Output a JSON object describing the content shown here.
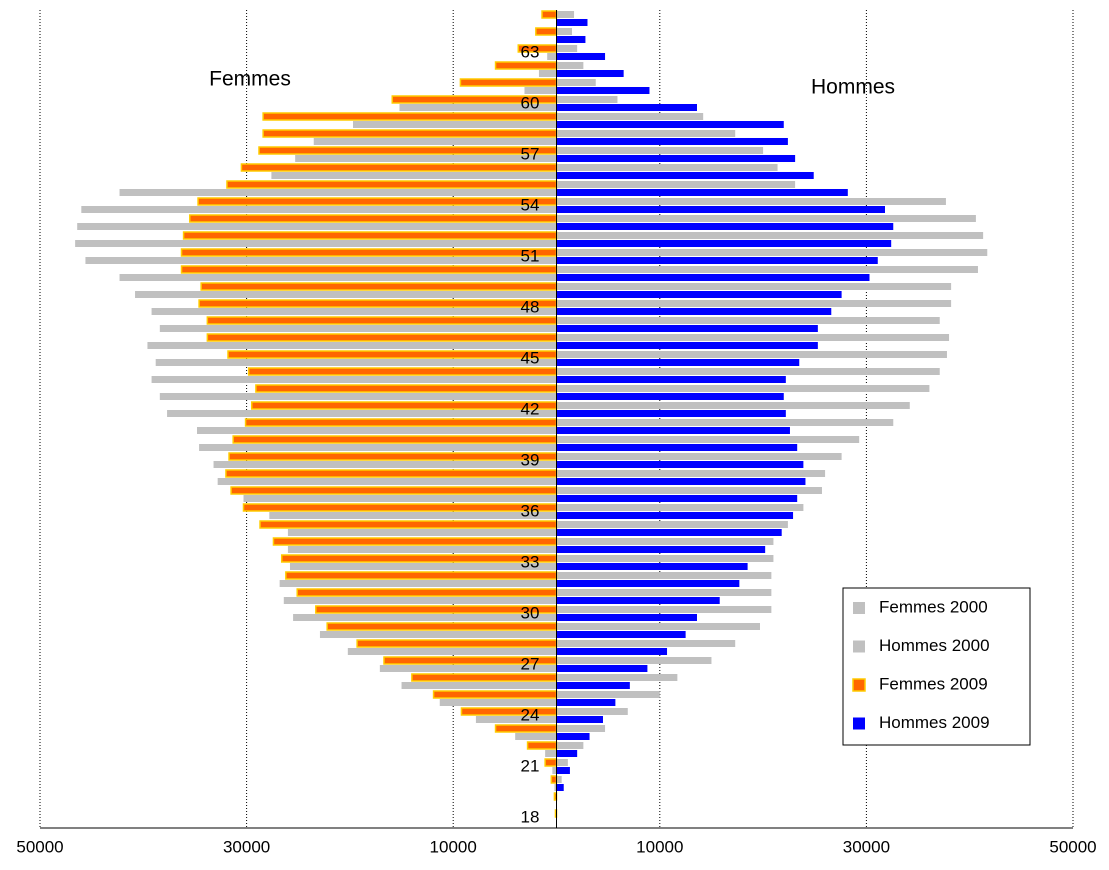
{
  "chart_data": {
    "type": "pyramid",
    "annotations": [
      "Femmes",
      "Hommes"
    ],
    "categories": [
      "18",
      null,
      null,
      "21",
      null,
      null,
      "24",
      null,
      null,
      "27",
      null,
      null,
      "30",
      null,
      null,
      "33",
      null,
      null,
      "36",
      null,
      null,
      "39",
      null,
      null,
      "42",
      null,
      null,
      "45",
      null,
      null,
      "48",
      null,
      null,
      "51",
      null,
      null,
      "54",
      null,
      null,
      "57",
      null,
      null,
      "60",
      null,
      null,
      "63",
      null,
      null
    ],
    "series": [
      {
        "name": "Femmes 2000",
        "color": "#c0c0c0",
        "values": [
          0,
          0,
          200,
          400,
          1100,
          4000,
          7800,
          11300,
          15000,
          17100,
          20200,
          22900,
          25500,
          26400,
          26800,
          25800,
          26000,
          26000,
          27800,
          30300,
          32800,
          33200,
          34600,
          34800,
          37700,
          38400,
          39200,
          38800,
          39600,
          38400,
          39200,
          40800,
          42300,
          45600,
          46600,
          46400,
          46000,
          42300,
          27600,
          25300,
          23500,
          19700,
          15200,
          3100,
          1700,
          900,
          0,
          0
        ]
      },
      {
        "name": "Hommes 2000",
        "color": "#c0c0c0",
        "values": [
          0,
          0,
          500,
          1100,
          2600,
          4700,
          6900,
          10000,
          11700,
          15000,
          17300,
          19700,
          20800,
          20800,
          20800,
          21000,
          21000,
          22400,
          23900,
          25700,
          26000,
          27600,
          29300,
          32600,
          34200,
          36100,
          37100,
          37800,
          38000,
          37100,
          38200,
          38200,
          40800,
          41700,
          41300,
          40600,
          37700,
          23100,
          21400,
          20000,
          17300,
          14200,
          5900,
          3800,
          2600,
          2000,
          1500,
          1700
        ]
      },
      {
        "name": "Femmes 2009",
        "color": "#ff6600",
        "values": [
          100,
          200,
          500,
          1100,
          2800,
          5900,
          9200,
          11900,
          14000,
          16700,
          19300,
          22200,
          23300,
          25100,
          26200,
          26600,
          27400,
          28700,
          30300,
          31500,
          32000,
          31700,
          31300,
          30100,
          29500,
          29100,
          29800,
          31800,
          33800,
          33800,
          34600,
          34400,
          36300,
          36300,
          36100,
          35500,
          34700,
          31900,
          30500,
          28800,
          28400,
          28400,
          15900,
          9300,
          5900,
          3700,
          2000,
          1400
        ]
      },
      {
        "name": "Hommes 2009",
        "color": "#0000ff",
        "values": [
          0,
          0,
          700,
          1300,
          2000,
          3200,
          4500,
          5700,
          7100,
          8800,
          10700,
          12500,
          13600,
          15800,
          17700,
          18500,
          20200,
          21800,
          22900,
          23300,
          24100,
          23900,
          23300,
          22600,
          22200,
          22000,
          22200,
          23500,
          25300,
          25300,
          26600,
          27600,
          30300,
          31100,
          32400,
          32600,
          31800,
          28200,
          24900,
          23100,
          22400,
          22000,
          13600,
          9000,
          6500,
          4700,
          2800,
          3000
        ]
      }
    ],
    "xlim": [
      -50000,
      50000
    ],
    "xticks": [
      {
        "value": -50000,
        "label": "50000"
      },
      {
        "value": -30000,
        "label": "30000"
      },
      {
        "value": -10000,
        "label": "10000"
      },
      10000,
      30000,
      50000
    ],
    "grid": true,
    "legend": "right"
  }
}
